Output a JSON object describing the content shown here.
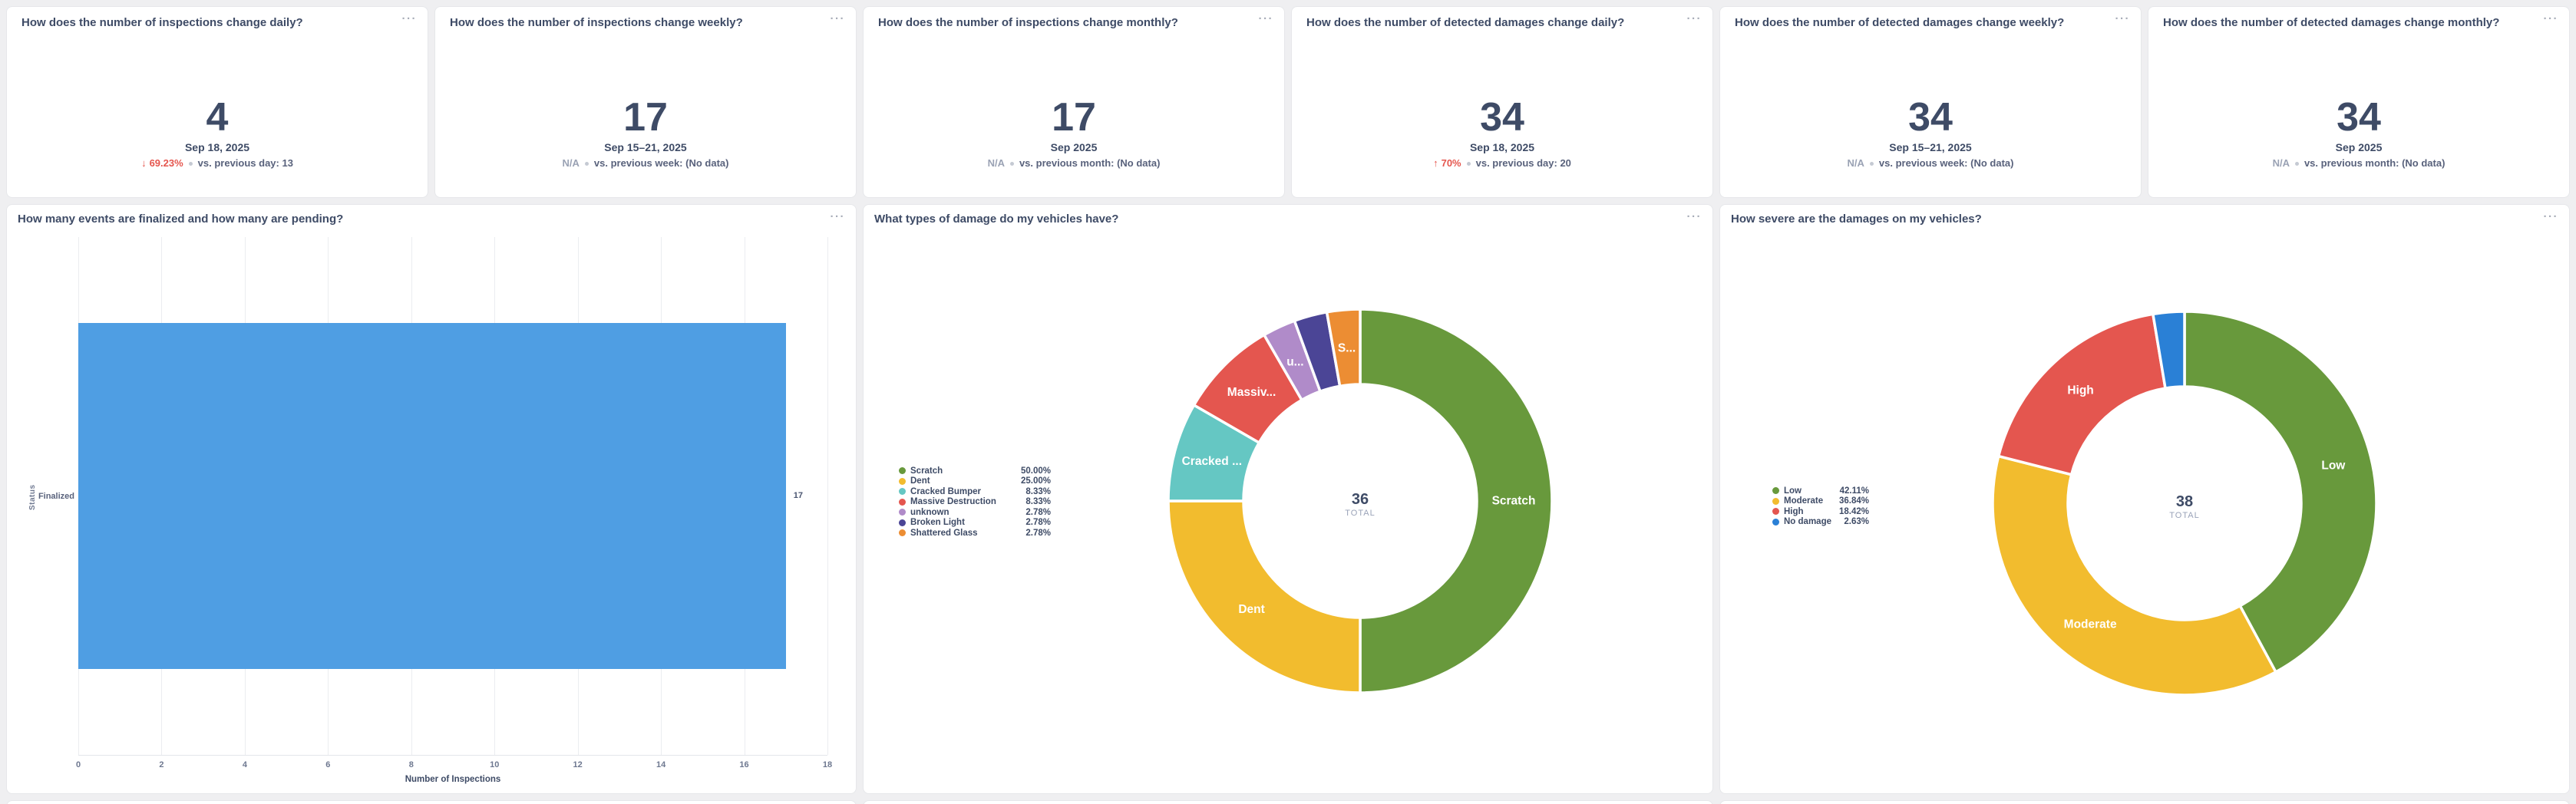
{
  "icons": {
    "more_options": "···"
  },
  "kpi_cards": [
    {
      "title": "How does the number of inspections change daily?",
      "value": "4",
      "period": "Sep 18, 2025",
      "delta": {
        "arrow": "↓",
        "percent": "69.23%",
        "tone": "negative",
        "compare": "vs. previous day: 13"
      }
    },
    {
      "title": "How does the number of inspections change weekly?",
      "value": "17",
      "period": "Sep 15–21, 2025",
      "delta": {
        "arrow": "",
        "percent": "N/A",
        "tone": "neutral",
        "compare": "vs. previous week: (No data)"
      }
    },
    {
      "title": "How does the number of inspections change monthly?",
      "value": "17",
      "period": "Sep 2025",
      "delta": {
        "arrow": "",
        "percent": "N/A",
        "tone": "neutral",
        "compare": "vs. previous month: (No data)"
      }
    },
    {
      "title": "How does the number of detected damages change daily?",
      "value": "34",
      "period": "Sep 18, 2025",
      "delta": {
        "arrow": "↑",
        "percent": "70%",
        "tone": "negative",
        "compare": "vs. previous day: 20"
      }
    },
    {
      "title": "How does the number of detected damages change weekly?",
      "value": "34",
      "period": "Sep 15–21, 2025",
      "delta": {
        "arrow": "",
        "percent": "N/A",
        "tone": "neutral",
        "compare": "vs. previous week: (No data)"
      }
    },
    {
      "title": "How does the number of detected damages change monthly?",
      "value": "34",
      "period": "Sep 2025",
      "delta": {
        "arrow": "",
        "percent": "N/A",
        "tone": "neutral",
        "compare": "vs. previous month: (No data)"
      }
    }
  ],
  "chart_data": [
    {
      "type": "bar",
      "orientation": "horizontal",
      "title": "How many events are finalized and how many are pending?",
      "categories": [
        "Finalized"
      ],
      "values": [
        17
      ],
      "value_labels": [
        "17"
      ],
      "xlabel": "Number of Inspections",
      "ylabel": "Status",
      "xlim": [
        0,
        18
      ],
      "xticks": [
        0,
        2,
        4,
        6,
        8,
        10,
        12,
        14,
        16,
        18
      ],
      "bar_color": "#4f9ee3",
      "grid": true,
      "legend_position": "none"
    },
    {
      "type": "pie",
      "subtype": "donut",
      "title": "What types of damage do my vehicles have?",
      "center_value": "36",
      "center_label": "TOTAL",
      "legend_position": "left",
      "slices": [
        {
          "name": "Scratch",
          "value": 50.0,
          "pct": "50.00%",
          "color": "#68993c",
          "slice_label": "Scratch"
        },
        {
          "name": "Dent",
          "value": 25.0,
          "pct": "25.00%",
          "color": "#f2bc2e",
          "slice_label": "Dent"
        },
        {
          "name": "Cracked Bumper",
          "value": 8.33,
          "pct": "8.33%",
          "color": "#65c7c3",
          "slice_label": "Cracked ..."
        },
        {
          "name": "Massive Destruction",
          "value": 8.33,
          "pct": "8.33%",
          "color": "#e4564f",
          "slice_label": "Massiv..."
        },
        {
          "name": "unknown",
          "value": 2.78,
          "pct": "2.78%",
          "color": "#b08bc9",
          "slice_label": "u..."
        },
        {
          "name": "Broken Light",
          "value": 2.78,
          "pct": "2.78%",
          "color": "#4b4596",
          "slice_label": ""
        },
        {
          "name": "Shattered Glass",
          "value": 2.78,
          "pct": "2.78%",
          "color": "#ec8d33",
          "slice_label": "S..."
        }
      ]
    },
    {
      "type": "pie",
      "subtype": "donut",
      "title": "How severe are the damages on my vehicles?",
      "center_value": "38",
      "center_label": "TOTAL",
      "legend_position": "left",
      "slices": [
        {
          "name": "Low",
          "value": 42.11,
          "pct": "42.11%",
          "color": "#68993c",
          "slice_label": "Low"
        },
        {
          "name": "Moderate",
          "value": 36.84,
          "pct": "36.84%",
          "color": "#f2bc2e",
          "slice_label": "Moderate"
        },
        {
          "name": "High",
          "value": 18.42,
          "pct": "18.42%",
          "color": "#e4564f",
          "slice_label": "High"
        },
        {
          "name": "No damage",
          "value": 2.63,
          "pct": "2.63%",
          "color": "#2a80d6",
          "slice_label": ""
        }
      ]
    }
  ]
}
